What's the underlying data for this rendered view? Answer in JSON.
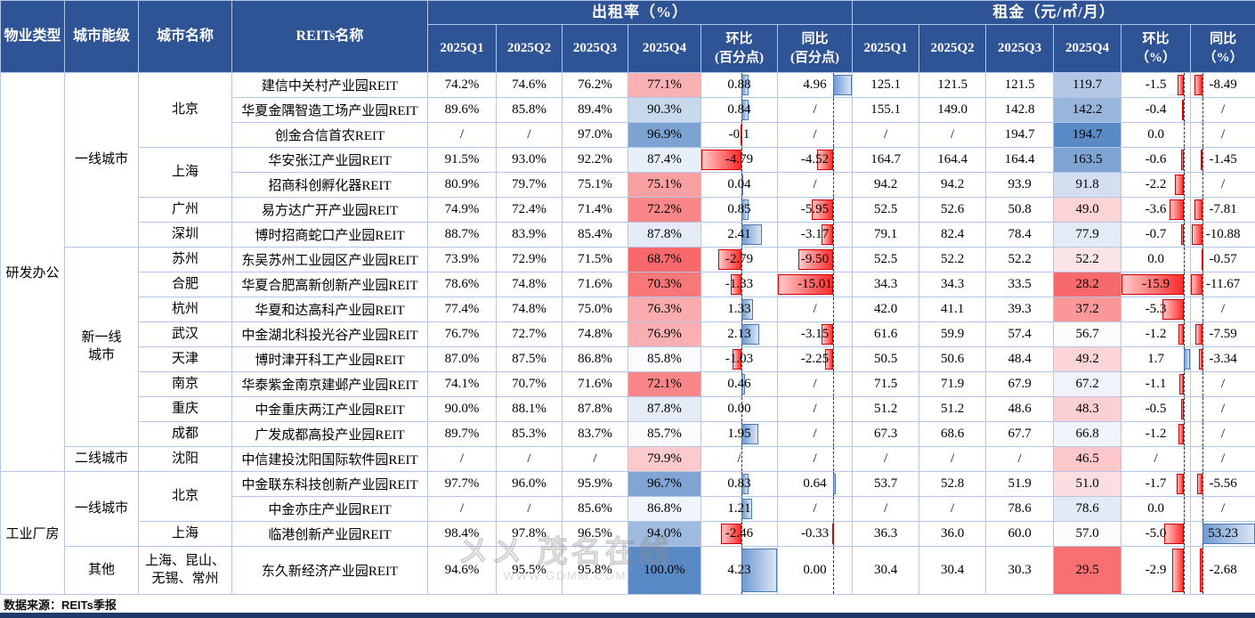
{
  "header": {
    "col_property": "物业类型",
    "col_tier": "城市能级",
    "col_city": "城市名称",
    "col_reits": "REITs名称",
    "occupancy_group": "出租率（%）",
    "rent_group": "租金（元/㎡/月）",
    "sub_occ": [
      "2025Q1",
      "2025Q2",
      "2025Q3",
      "2025Q4",
      "环比\n(百分点)",
      "同比\n(百分点)"
    ],
    "sub_rent": [
      "2025Q1",
      "2025Q2",
      "2025Q3",
      "2025Q4",
      "环比\n（%）",
      "同比\n（%）"
    ]
  },
  "colors": {
    "header_bg": "#2F5496",
    "grid": "#B4C6E7",
    "bottom_bar": "#1E3A68",
    "scale_min": "#F8696B",
    "scale_mid": "#FCFCFF",
    "scale_max": "#5A8AC6",
    "bar_negative": "#FF2B2B",
    "bar_positive": "#6F9AD3"
  },
  "rows": [
    {
      "property": {
        "label": "研发办公",
        "span": 16
      },
      "tier": {
        "label": "一线城市",
        "span": 7
      },
      "city": {
        "label": "北京",
        "span": 3
      },
      "name": "建信中关村产业园REIT",
      "occ": [
        "74.2%",
        "74.6%",
        "76.2%",
        "77.1%"
      ],
      "occ_qoq": "0.88",
      "occ_yoy": "4.96",
      "rent": [
        "125.1",
        "121.5",
        "121.5",
        "119.7"
      ],
      "rent_qoq": "-1.5",
      "rent_yoy": "-8.49"
    },
    {
      "name": "华夏金隅智造工场产业园REIT",
      "occ": [
        "89.6%",
        "85.8%",
        "89.4%",
        "90.3%"
      ],
      "occ_qoq": "0.84",
      "occ_yoy": "/",
      "rent": [
        "155.1",
        "149.0",
        "142.8",
        "142.2"
      ],
      "rent_qoq": "-0.4",
      "rent_yoy": "/"
    },
    {
      "name": "创金合信首农REIT",
      "occ": [
        "/",
        "/",
        "97.0%",
        "96.9%"
      ],
      "occ_qoq": "-0.1",
      "occ_yoy": "/",
      "rent": [
        "/",
        "/",
        "194.7",
        "194.7"
      ],
      "rent_qoq": "0.0",
      "rent_yoy": "/"
    },
    {
      "city": {
        "label": "上海",
        "span": 2
      },
      "name": "华安张江产业园REIT",
      "occ": [
        "91.5%",
        "93.0%",
        "92.2%",
        "87.4%"
      ],
      "occ_qoq": "-4.79",
      "occ_yoy": "-4.52",
      "rent": [
        "164.7",
        "164.4",
        "164.4",
        "163.5"
      ],
      "rent_qoq": "-0.6",
      "rent_yoy": "-1.45"
    },
    {
      "name": "招商科创孵化器REIT",
      "occ": [
        "80.9%",
        "79.7%",
        "75.1%",
        "75.1%"
      ],
      "occ_qoq": "0.04",
      "occ_yoy": "/",
      "rent": [
        "94.2",
        "94.2",
        "93.9",
        "91.8"
      ],
      "rent_qoq": "-2.2",
      "rent_yoy": "/"
    },
    {
      "city": {
        "label": "广州",
        "span": 1
      },
      "name": "易方达广开产业园REIT",
      "occ": [
        "74.9%",
        "72.4%",
        "71.4%",
        "72.2%"
      ],
      "occ_qoq": "0.85",
      "occ_yoy": "-5.95",
      "rent": [
        "52.5",
        "52.6",
        "50.8",
        "49.0"
      ],
      "rent_qoq": "-3.6",
      "rent_yoy": "-7.81"
    },
    {
      "city": {
        "label": "深圳",
        "span": 1
      },
      "name": "博时招商蛇口产业园REIT",
      "occ": [
        "88.7%",
        "83.9%",
        "85.4%",
        "87.8%"
      ],
      "occ_qoq": "2.41",
      "occ_yoy": "-3.17",
      "rent": [
        "79.1",
        "82.4",
        "78.4",
        "77.9"
      ],
      "rent_qoq": "-0.7",
      "rent_yoy": "-10.88"
    },
    {
      "tier": {
        "label": "新一线\n城市",
        "span": 8
      },
      "city": {
        "label": "苏州",
        "span": 1
      },
      "name": "东吴苏州工业园区产业园REIT",
      "occ": [
        "73.9%",
        "72.9%",
        "71.5%",
        "68.7%"
      ],
      "occ_qoq": "-2.79",
      "occ_yoy": "-9.50",
      "rent": [
        "52.5",
        "52.2",
        "52.2",
        "52.2"
      ],
      "rent_qoq": "0.0",
      "rent_yoy": "-0.57"
    },
    {
      "city": {
        "label": "合肥",
        "span": 1
      },
      "name": "华夏合肥高新创新产业园REIT",
      "occ": [
        "78.6%",
        "74.8%",
        "71.6%",
        "70.3%"
      ],
      "occ_qoq": "-1.33",
      "occ_yoy": "-15.01",
      "rent": [
        "34.3",
        "34.3",
        "33.5",
        "28.2"
      ],
      "rent_qoq": "-15.9",
      "rent_yoy": "-11.67"
    },
    {
      "city": {
        "label": "杭州",
        "span": 1
      },
      "name": "华夏和达高科产业园REIT",
      "occ": [
        "77.4%",
        "74.8%",
        "75.0%",
        "76.3%"
      ],
      "occ_qoq": "1.33",
      "occ_yoy": "/",
      "rent": [
        "42.0",
        "41.1",
        "39.3",
        "37.2"
      ],
      "rent_qoq": "-5.3",
      "rent_yoy": "/"
    },
    {
      "city": {
        "label": "武汉",
        "span": 1
      },
      "name": "中金湖北科投光谷产业园REIT",
      "occ": [
        "76.7%",
        "72.7%",
        "74.8%",
        "76.9%"
      ],
      "occ_qoq": "2.13",
      "occ_yoy": "-3.15",
      "rent": [
        "61.6",
        "59.9",
        "57.4",
        "56.7"
      ],
      "rent_qoq": "-1.2",
      "rent_yoy": "-7.59"
    },
    {
      "city": {
        "label": "天津",
        "span": 1
      },
      "name": "博时津开科工产业园REIT",
      "occ": [
        "87.0%",
        "87.5%",
        "86.8%",
        "85.8%"
      ],
      "occ_qoq": "-1.03",
      "occ_yoy": "-2.25",
      "rent": [
        "50.5",
        "50.6",
        "48.4",
        "49.2"
      ],
      "rent_qoq": "1.7",
      "rent_yoy": "-3.34"
    },
    {
      "city": {
        "label": "南京",
        "span": 1
      },
      "name": "华泰紫金南京建邺产业园REIT",
      "occ": [
        "74.1%",
        "70.7%",
        "71.6%",
        "72.1%"
      ],
      "occ_qoq": "0.46",
      "occ_yoy": "/",
      "rent": [
        "71.5",
        "71.9",
        "67.9",
        "67.2"
      ],
      "rent_qoq": "-1.1",
      "rent_yoy": "/"
    },
    {
      "city": {
        "label": "重庆",
        "span": 1
      },
      "name": "中金重庆两江产业园REIT",
      "occ": [
        "90.0%",
        "88.1%",
        "87.8%",
        "87.8%"
      ],
      "occ_qoq": "0.00",
      "occ_yoy": "/",
      "rent": [
        "51.2",
        "51.2",
        "48.6",
        "48.3"
      ],
      "rent_qoq": "-0.5",
      "rent_yoy": "/"
    },
    {
      "city": {
        "label": "成都",
        "span": 1
      },
      "name": "广发成都高投产业园REIT",
      "occ": [
        "89.7%",
        "85.3%",
        "83.7%",
        "85.7%"
      ],
      "occ_qoq": "1.95",
      "occ_yoy": "/",
      "rent": [
        "67.3",
        "68.6",
        "67.7",
        "66.8"
      ],
      "rent_qoq": "-1.2",
      "rent_yoy": "/"
    },
    {
      "tier": {
        "label": "二线城市",
        "span": 1
      },
      "city": {
        "label": "沈阳",
        "span": 1
      },
      "name": "中信建投沈阳国际软件园REIT",
      "occ": [
        "/",
        "/",
        "/",
        "79.9%"
      ],
      "occ_qoq": "/",
      "occ_yoy": "/",
      "rent": [
        "/",
        "/",
        "/",
        "46.5"
      ],
      "rent_qoq": "/",
      "rent_yoy": "/"
    },
    {
      "property": {
        "label": "工业厂房",
        "span": 4
      },
      "tier": {
        "label": "一线城市",
        "span": 3
      },
      "city": {
        "label": "北京",
        "span": 2
      },
      "name": "中金联东科技创新产业园REIT",
      "occ": [
        "97.7%",
        "96.0%",
        "95.9%",
        "96.7%"
      ],
      "occ_qoq": "0.83",
      "occ_yoy": "0.64",
      "rent": [
        "53.7",
        "52.8",
        "51.9",
        "51.0"
      ],
      "rent_qoq": "-1.7",
      "rent_yoy": "-5.56"
    },
    {
      "name": "中金亦庄产业园REIT",
      "occ": [
        "/",
        "/",
        "85.6%",
        "86.8%"
      ],
      "occ_qoq": "1.21",
      "occ_yoy": "/",
      "rent": [
        "/",
        "/",
        "78.6",
        "78.6"
      ],
      "rent_qoq": "0.0",
      "rent_yoy": "/"
    },
    {
      "city": {
        "label": "上海",
        "span": 1
      },
      "name": "临港创新产业园REIT",
      "occ": [
        "98.4%",
        "97.8%",
        "96.5%",
        "94.0%"
      ],
      "occ_qoq": "-2.46",
      "occ_yoy": "-0.33",
      "rent": [
        "36.3",
        "36.0",
        "60.0",
        "57.0"
      ],
      "rent_qoq": "-5.0",
      "rent_yoy": "53.23"
    },
    {
      "tier": {
        "label": "其他",
        "span": 1
      },
      "city": {
        "label": "上海、昆山、\n无锡、常州",
        "span": 1
      },
      "tall": true,
      "name": "东久新经济产业园REIT",
      "occ": [
        "94.6%",
        "95.5%",
        "95.8%",
        "100.0%"
      ],
      "occ_qoq": "4.23",
      "occ_yoy": "0.00",
      "rent": [
        "30.4",
        "30.4",
        "30.3",
        "29.5"
      ],
      "rent_qoq": "-2.9",
      "rent_yoy": "-2.68"
    }
  ],
  "footer": {
    "source": "数据来源：REITs季报"
  },
  "watermark": {
    "brand": "〤〤 茂名在线",
    "url": "WWW.GDMM.COM"
  }
}
